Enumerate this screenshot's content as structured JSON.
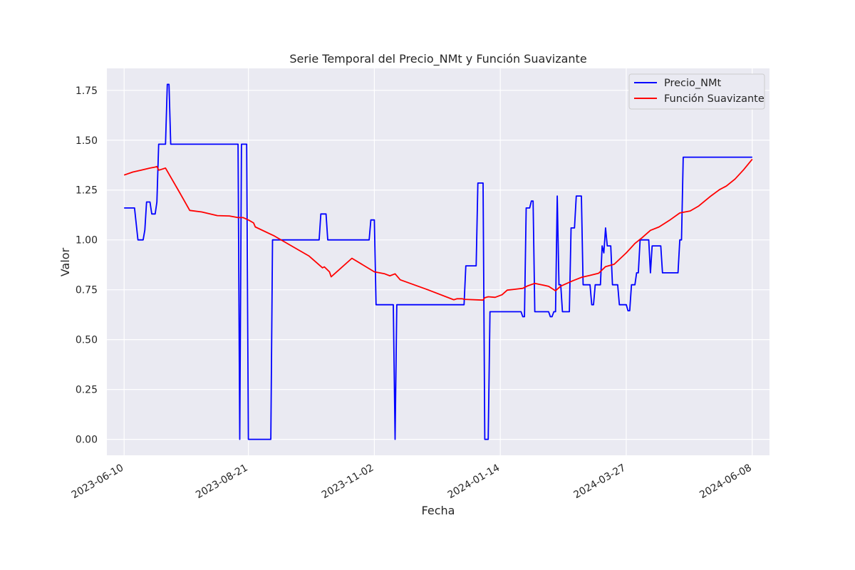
{
  "chart_data": {
    "type": "line",
    "title": "Serie Temporal del Precio_NMt y Función Suavizante",
    "xlabel": "Fecha",
    "ylabel": "Valor",
    "x_tick_labels": [
      "2023-06-10",
      "2023-08-21",
      "2023-11-02",
      "2024-01-14",
      "2024-03-27",
      "2024-06-08"
    ],
    "y_tick_labels": [
      "0.00",
      "0.25",
      "0.50",
      "0.75",
      "1.00",
      "1.25",
      "1.50",
      "1.75"
    ],
    "xlim": [
      "2023-05-31",
      "2024-06-18"
    ],
    "ylim": [
      -0.08,
      1.86
    ],
    "grid": true,
    "legend_position": "top-right",
    "series": [
      {
        "name": "Precio_NMt",
        "color": "#0000ff",
        "points": [
          [
            "2023-06-10",
            1.16
          ],
          [
            "2023-06-13",
            1.16
          ],
          [
            "2023-06-14",
            1.16
          ],
          [
            "2023-06-16",
            1.16
          ],
          [
            "2023-06-18",
            1.0
          ],
          [
            "2023-06-21",
            1.0
          ],
          [
            "2023-06-22",
            1.05
          ],
          [
            "2023-06-23",
            1.19
          ],
          [
            "2023-06-25",
            1.19
          ],
          [
            "2023-06-26",
            1.13
          ],
          [
            "2023-06-28",
            1.13
          ],
          [
            "2023-06-29",
            1.19
          ],
          [
            "2023-06-30",
            1.48
          ],
          [
            "2023-07-04",
            1.48
          ],
          [
            "2023-07-05",
            1.78
          ],
          [
            "2023-07-06",
            1.78
          ],
          [
            "2023-07-07",
            1.48
          ],
          [
            "2023-08-15",
            1.48
          ],
          [
            "2023-08-16",
            0.0
          ],
          [
            "2023-08-17",
            1.48
          ],
          [
            "2023-08-20",
            1.48
          ],
          [
            "2023-08-21",
            0.0
          ],
          [
            "2023-09-03",
            0.0
          ],
          [
            "2023-09-04",
            1.0
          ],
          [
            "2023-10-01",
            1.0
          ],
          [
            "2023-10-02",
            1.13
          ],
          [
            "2023-10-05",
            1.13
          ],
          [
            "2023-10-06",
            1.0
          ],
          [
            "2023-10-30",
            1.0
          ],
          [
            "2023-10-31",
            1.1
          ],
          [
            "2023-11-02",
            1.1
          ],
          [
            "2023-11-03",
            0.675
          ],
          [
            "2023-11-13",
            0.675
          ],
          [
            "2023-11-14",
            0.0
          ],
          [
            "2023-11-15",
            0.675
          ],
          [
            "2023-12-24",
            0.675
          ],
          [
            "2023-12-25",
            0.87
          ],
          [
            "2023-12-31",
            0.87
          ],
          [
            "2024-01-01",
            1.285
          ],
          [
            "2024-01-04",
            1.285
          ],
          [
            "2024-01-05",
            0.0
          ],
          [
            "2024-01-07",
            0.0
          ],
          [
            "2024-01-08",
            0.64
          ],
          [
            "2024-01-26",
            0.64
          ],
          [
            "2024-01-27",
            0.615
          ],
          [
            "2024-01-28",
            0.615
          ],
          [
            "2024-01-29",
            1.16
          ],
          [
            "2024-01-31",
            1.16
          ],
          [
            "2024-02-01",
            1.195
          ],
          [
            "2024-02-02",
            1.195
          ],
          [
            "2024-02-03",
            0.64
          ],
          [
            "2024-02-11",
            0.64
          ],
          [
            "2024-02-12",
            0.615
          ],
          [
            "2024-02-13",
            0.615
          ],
          [
            "2024-02-14",
            0.64
          ],
          [
            "2024-02-15",
            0.64
          ],
          [
            "2024-02-16",
            1.22
          ],
          [
            "2024-02-17",
            0.775
          ],
          [
            "2024-02-18",
            0.775
          ],
          [
            "2024-02-19",
            0.64
          ],
          [
            "2024-02-23",
            0.64
          ],
          [
            "2024-02-24",
            1.06
          ],
          [
            "2024-02-26",
            1.06
          ],
          [
            "2024-02-27",
            1.22
          ],
          [
            "2024-03-01",
            1.22
          ],
          [
            "2024-03-02",
            0.775
          ],
          [
            "2024-03-06",
            0.775
          ],
          [
            "2024-03-07",
            0.675
          ],
          [
            "2024-03-08",
            0.675
          ],
          [
            "2024-03-09",
            0.775
          ],
          [
            "2024-03-12",
            0.775
          ],
          [
            "2024-03-13",
            0.97
          ],
          [
            "2024-03-14",
            0.935
          ],
          [
            "2024-03-15",
            1.06
          ],
          [
            "2024-03-16",
            0.97
          ],
          [
            "2024-03-18",
            0.97
          ],
          [
            "2024-03-19",
            0.775
          ],
          [
            "2024-03-22",
            0.775
          ],
          [
            "2024-03-23",
            0.675
          ],
          [
            "2024-03-27",
            0.675
          ],
          [
            "2024-03-28",
            0.645
          ],
          [
            "2024-03-29",
            0.645
          ],
          [
            "2024-03-30",
            0.775
          ],
          [
            "2024-04-01",
            0.775
          ],
          [
            "2024-04-02",
            0.835
          ],
          [
            "2024-04-03",
            0.835
          ],
          [
            "2024-04-04",
            1.0
          ],
          [
            "2024-04-09",
            1.0
          ],
          [
            "2024-04-10",
            0.835
          ],
          [
            "2024-04-11",
            0.97
          ],
          [
            "2024-04-16",
            0.97
          ],
          [
            "2024-04-17",
            0.835
          ],
          [
            "2024-04-26",
            0.835
          ],
          [
            "2024-04-27",
            1.0
          ],
          [
            "2024-04-28",
            1.0
          ],
          [
            "2024-04-29",
            1.415
          ],
          [
            "2024-06-08",
            1.415
          ]
        ]
      },
      {
        "name": "Función Suavizante",
        "color": "#ff0000",
        "points": [
          [
            "2023-06-10",
            1.325
          ],
          [
            "2023-06-15",
            1.34
          ],
          [
            "2023-06-20",
            1.35
          ],
          [
            "2023-06-25",
            1.36
          ],
          [
            "2023-06-28",
            1.365
          ],
          [
            "2023-06-29",
            1.368
          ],
          [
            "2023-06-30",
            1.35
          ],
          [
            "2023-07-01",
            1.352
          ],
          [
            "2023-07-04",
            1.36
          ],
          [
            "2023-07-08",
            1.3
          ],
          [
            "2023-07-12",
            1.24
          ],
          [
            "2023-07-18",
            1.148
          ],
          [
            "2023-07-25",
            1.14
          ],
          [
            "2023-08-03",
            1.122
          ],
          [
            "2023-08-10",
            1.12
          ],
          [
            "2023-08-15",
            1.112
          ],
          [
            "2023-08-18",
            1.112
          ],
          [
            "2023-08-21",
            1.1
          ],
          [
            "2023-08-24",
            1.085
          ],
          [
            "2023-08-25",
            1.065
          ],
          [
            "2023-09-05",
            1.02
          ],
          [
            "2023-09-15",
            0.97
          ],
          [
            "2023-09-25",
            0.92
          ],
          [
            "2023-10-03",
            0.86
          ],
          [
            "2023-10-04",
            0.865
          ],
          [
            "2023-10-07",
            0.84
          ],
          [
            "2023-10-08",
            0.815
          ],
          [
            "2023-10-20",
            0.908
          ],
          [
            "2023-11-02",
            0.84
          ],
          [
            "2023-11-08",
            0.83
          ],
          [
            "2023-11-11",
            0.82
          ],
          [
            "2023-11-14",
            0.83
          ],
          [
            "2023-11-17",
            0.8
          ],
          [
            "2023-12-03",
            0.75
          ],
          [
            "2023-12-18",
            0.7
          ],
          [
            "2023-12-20",
            0.705
          ],
          [
            "2023-12-23",
            0.705
          ],
          [
            "2023-12-24",
            0.702
          ],
          [
            "2024-01-04",
            0.698
          ],
          [
            "2024-01-05",
            0.71
          ],
          [
            "2024-01-07",
            0.715
          ],
          [
            "2024-01-11",
            0.712
          ],
          [
            "2024-01-15",
            0.725
          ],
          [
            "2024-01-18",
            0.748
          ],
          [
            "2024-01-22",
            0.752
          ],
          [
            "2024-01-27",
            0.757
          ],
          [
            "2024-01-30",
            0.77
          ],
          [
            "2024-02-03",
            0.782
          ],
          [
            "2024-02-07",
            0.775
          ],
          [
            "2024-02-11",
            0.767
          ],
          [
            "2024-02-15",
            0.745
          ],
          [
            "2024-02-18",
            0.768
          ],
          [
            "2024-02-25",
            0.795
          ],
          [
            "2024-03-01",
            0.812
          ],
          [
            "2024-03-06",
            0.822
          ],
          [
            "2024-03-11",
            0.833
          ],
          [
            "2024-03-15",
            0.866
          ],
          [
            "2024-03-20",
            0.878
          ],
          [
            "2024-03-27",
            0.935
          ],
          [
            "2024-04-01",
            0.982
          ],
          [
            "2024-04-05",
            1.01
          ],
          [
            "2024-04-10",
            1.048
          ],
          [
            "2024-04-15",
            1.065
          ],
          [
            "2024-04-21",
            1.098
          ],
          [
            "2024-04-27",
            1.135
          ],
          [
            "2024-05-03",
            1.145
          ],
          [
            "2024-05-08",
            1.17
          ],
          [
            "2024-05-15",
            1.22
          ],
          [
            "2024-05-20",
            1.252
          ],
          [
            "2024-05-24",
            1.27
          ],
          [
            "2024-05-29",
            1.305
          ],
          [
            "2024-06-03",
            1.352
          ],
          [
            "2024-06-08",
            1.405
          ]
        ]
      }
    ]
  }
}
